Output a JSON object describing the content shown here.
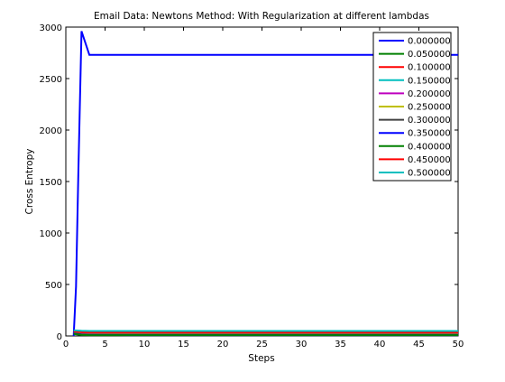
{
  "chart_data": {
    "type": "line",
    "title": "Email Data: Newtons Method: With Regularization at different lambdas",
    "xlabel": "Steps",
    "ylabel": "Cross Entropy",
    "xlim": [
      0,
      50
    ],
    "ylim": [
      0,
      3000
    ],
    "xticks": [
      "0",
      "5",
      "10",
      "15",
      "20",
      "25",
      "30",
      "35",
      "40",
      "45",
      "50"
    ],
    "yticks": [
      "0",
      "500",
      "1000",
      "1500",
      "2000",
      "2500",
      "3000"
    ],
    "grid": false,
    "legend_position": "top-right",
    "series": [
      {
        "name": "0.000000",
        "color": "#0000ff",
        "x": [
          1,
          1.3,
          1.6,
          2,
          3,
          50
        ],
        "y": [
          0,
          480,
          1600,
          2960,
          2730,
          2730
        ]
      },
      {
        "name": "0.050000",
        "color": "#008000",
        "x": [
          1,
          2,
          3,
          50
        ],
        "y": [
          40,
          30,
          28,
          28
        ]
      },
      {
        "name": "0.100000",
        "color": "#ff0000",
        "x": [
          1,
          2,
          3,
          50
        ],
        "y": [
          35,
          25,
          22,
          22
        ]
      },
      {
        "name": "0.150000",
        "color": "#00bfbf",
        "x": [
          1,
          2,
          3,
          50
        ],
        "y": [
          50,
          45,
          43,
          43
        ]
      },
      {
        "name": "0.200000",
        "color": "#bf00bf",
        "x": [
          1,
          2,
          3,
          50
        ],
        "y": [
          30,
          20,
          18,
          18
        ]
      },
      {
        "name": "0.250000",
        "color": "#bfbf00",
        "x": [
          1,
          2,
          3,
          50
        ],
        "y": [
          28,
          18,
          15,
          15
        ]
      },
      {
        "name": "0.300000",
        "color": "#404040",
        "x": [
          1,
          2,
          3,
          50
        ],
        "y": [
          25,
          15,
          12,
          12
        ]
      },
      {
        "name": "0.350000",
        "color": "#0000ff",
        "x": [
          1,
          2,
          3,
          8,
          50
        ],
        "y": [
          22,
          12,
          10,
          8,
          8
        ]
      },
      {
        "name": "0.400000",
        "color": "#008000",
        "x": [
          1,
          2,
          3,
          50
        ],
        "y": [
          20,
          10,
          8,
          8
        ]
      },
      {
        "name": "0.450000",
        "color": "#ff0000",
        "x": [
          1,
          2,
          3,
          50
        ],
        "y": [
          45,
          38,
          36,
          36
        ]
      },
      {
        "name": "0.500000",
        "color": "#00bfbf",
        "x": [
          1,
          2,
          3,
          50
        ],
        "y": [
          55,
          50,
          48,
          48
        ]
      }
    ]
  }
}
